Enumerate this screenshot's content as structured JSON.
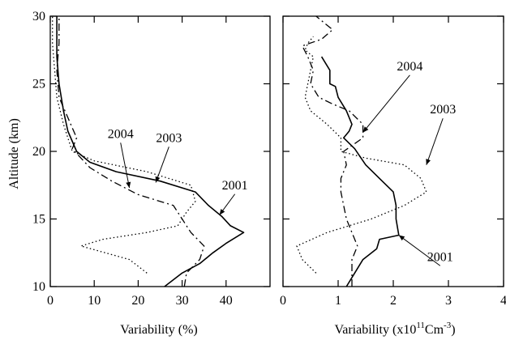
{
  "chart_data": [
    {
      "type": "line",
      "xlabel": "Variability (%)",
      "ylabel": "Altitude (km)",
      "xlim": [
        0,
        50
      ],
      "ylim": [
        10,
        30
      ],
      "xticks": [
        0,
        10,
        20,
        30,
        40
      ],
      "yticks": [
        10,
        15,
        20,
        25,
        30
      ],
      "series": [
        {
          "name": "2001",
          "style": "solid",
          "points": [
            [
              26,
              10
            ],
            [
              30,
              11
            ],
            [
              34,
              11.7
            ],
            [
              37,
              12.5
            ],
            [
              40,
              13.2
            ],
            [
              44,
              14
            ],
            [
              41,
              14.5
            ],
            [
              39,
              15.2
            ],
            [
              36,
              16
            ],
            [
              33,
              17
            ],
            [
              25,
              17.8
            ],
            [
              15,
              18.5
            ],
            [
              9,
              19.2
            ],
            [
              6,
              20
            ],
            [
              4,
              21.5
            ],
            [
              3,
              23
            ],
            [
              2,
              25
            ],
            [
              1.5,
              27
            ],
            [
              1.5,
              30
            ]
          ]
        },
        {
          "name": "2003",
          "style": "dotted",
          "points": [
            [
              22,
              11
            ],
            [
              18,
              12
            ],
            [
              7,
              13
            ],
            [
              12,
              13.5
            ],
            [
              22,
              14
            ],
            [
              29,
              14.5
            ],
            [
              31,
              15.5
            ],
            [
              33,
              16.3
            ],
            [
              32,
              17.5
            ],
            [
              22,
              18.5
            ],
            [
              10,
              19.3
            ],
            [
              5,
              20
            ],
            [
              3,
              22
            ],
            [
              1.5,
              24
            ],
            [
              1,
              26
            ],
            [
              0.5,
              28
            ],
            [
              0.5,
              30
            ]
          ]
        },
        {
          "name": "2004",
          "style": "dashdot",
          "points": [
            [
              30.5,
              10
            ],
            [
              31,
              11
            ],
            [
              34,
              12
            ],
            [
              35,
              13
            ],
            [
              32,
              14
            ],
            [
              30,
              15
            ],
            [
              28,
              16
            ],
            [
              20,
              16.8
            ],
            [
              14,
              17.8
            ],
            [
              9,
              18.8
            ],
            [
              5,
              20.2
            ],
            [
              6,
              21
            ],
            [
              4,
              22.5
            ],
            [
              2,
              24
            ],
            [
              1.5,
              26
            ],
            [
              2,
              28
            ],
            [
              2,
              30
            ]
          ]
        }
      ],
      "annotations": [
        {
          "text": "2004",
          "x": 16,
          "y": 21,
          "arrow_to": [
            18,
            17.3
          ]
        },
        {
          "text": "2003",
          "x": 27,
          "y": 20.7,
          "arrow_to": [
            24,
            17.7
          ]
        },
        {
          "text": "2001",
          "x": 42,
          "y": 17.2,
          "arrow_to": [
            38.5,
            15.3
          ]
        }
      ]
    },
    {
      "type": "line",
      "xlabel": "Variability (x10",
      "xlabel_sup1": "11",
      "xlabel_mid": "Cm",
      "xlabel_sup2": "-3",
      "xlabel_end": ")",
      "ylabel": "",
      "xlim": [
        0,
        4
      ],
      "ylim": [
        10,
        30
      ],
      "xticks": [
        0,
        1,
        2,
        3,
        4
      ],
      "yticks": [
        10,
        15,
        20,
        25,
        30
      ],
      "series": [
        {
          "name": "2001",
          "style": "solid",
          "points": [
            [
              1.15,
              10
            ],
            [
              1.3,
              11
            ],
            [
              1.45,
              12
            ],
            [
              1.7,
              12.8
            ],
            [
              1.75,
              13.5
            ],
            [
              2.1,
              13.8
            ],
            [
              2.05,
              15
            ],
            [
              2.05,
              16
            ],
            [
              2.0,
              17
            ],
            [
              1.75,
              18
            ],
            [
              1.5,
              19
            ],
            [
              1.3,
              20.2
            ],
            [
              1.1,
              21
            ],
            [
              1.2,
              21.5
            ],
            [
              1.25,
              22
            ],
            [
              1.15,
              23
            ],
            [
              1.0,
              24
            ],
            [
              0.95,
              24.8
            ],
            [
              0.85,
              25
            ],
            [
              0.85,
              26
            ],
            [
              0.7,
              27
            ]
          ]
        },
        {
          "name": "2003",
          "style": "dotted",
          "points": [
            [
              0.6,
              11
            ],
            [
              0.35,
              12
            ],
            [
              0.25,
              13
            ],
            [
              0.8,
              14
            ],
            [
              1.6,
              15
            ],
            [
              2.2,
              16
            ],
            [
              2.6,
              17
            ],
            [
              2.5,
              18
            ],
            [
              2.2,
              19
            ],
            [
              1.5,
              19.5
            ],
            [
              1.05,
              20
            ],
            [
              1.05,
              21
            ],
            [
              0.8,
              22
            ],
            [
              0.5,
              23
            ],
            [
              0.4,
              24
            ],
            [
              0.45,
              25
            ],
            [
              0.5,
              26
            ],
            [
              0.55,
              27
            ],
            [
              0.4,
              27.5
            ],
            [
              0.45,
              28
            ],
            [
              0.55,
              28.5
            ]
          ]
        },
        {
          "name": "2004",
          "style": "dashdot",
          "points": [
            [
              1.25,
              10
            ],
            [
              1.25,
              11
            ],
            [
              1.25,
              12
            ],
            [
              1.35,
              13
            ],
            [
              1.25,
              14
            ],
            [
              1.15,
              15
            ],
            [
              1.1,
              16
            ],
            [
              1.05,
              17
            ],
            [
              1.05,
              18
            ],
            [
              1.15,
              19
            ],
            [
              1.1,
              20
            ],
            [
              1.45,
              21
            ],
            [
              1.45,
              22
            ],
            [
              1.2,
              23
            ],
            [
              0.9,
              23.5
            ],
            [
              0.65,
              24
            ],
            [
              0.5,
              25
            ],
            [
              0.55,
              26
            ],
            [
              0.45,
              27
            ],
            [
              0.35,
              27.8
            ],
            [
              0.7,
              28.3
            ],
            [
              0.9,
              29
            ],
            [
              0.75,
              29.5
            ],
            [
              0.6,
              30
            ]
          ]
        }
      ],
      "annotations": [
        {
          "text": "2004",
          "x": 2.3,
          "y": 26,
          "arrow_to": [
            1.45,
            21.4
          ]
        },
        {
          "text": "2003",
          "x": 2.9,
          "y": 22.8,
          "arrow_to": [
            2.6,
            19
          ]
        },
        {
          "text": "2001",
          "x": 2.85,
          "y": 11.9,
          "arrow_to": [
            2.1,
            13.8
          ]
        }
      ]
    }
  ]
}
